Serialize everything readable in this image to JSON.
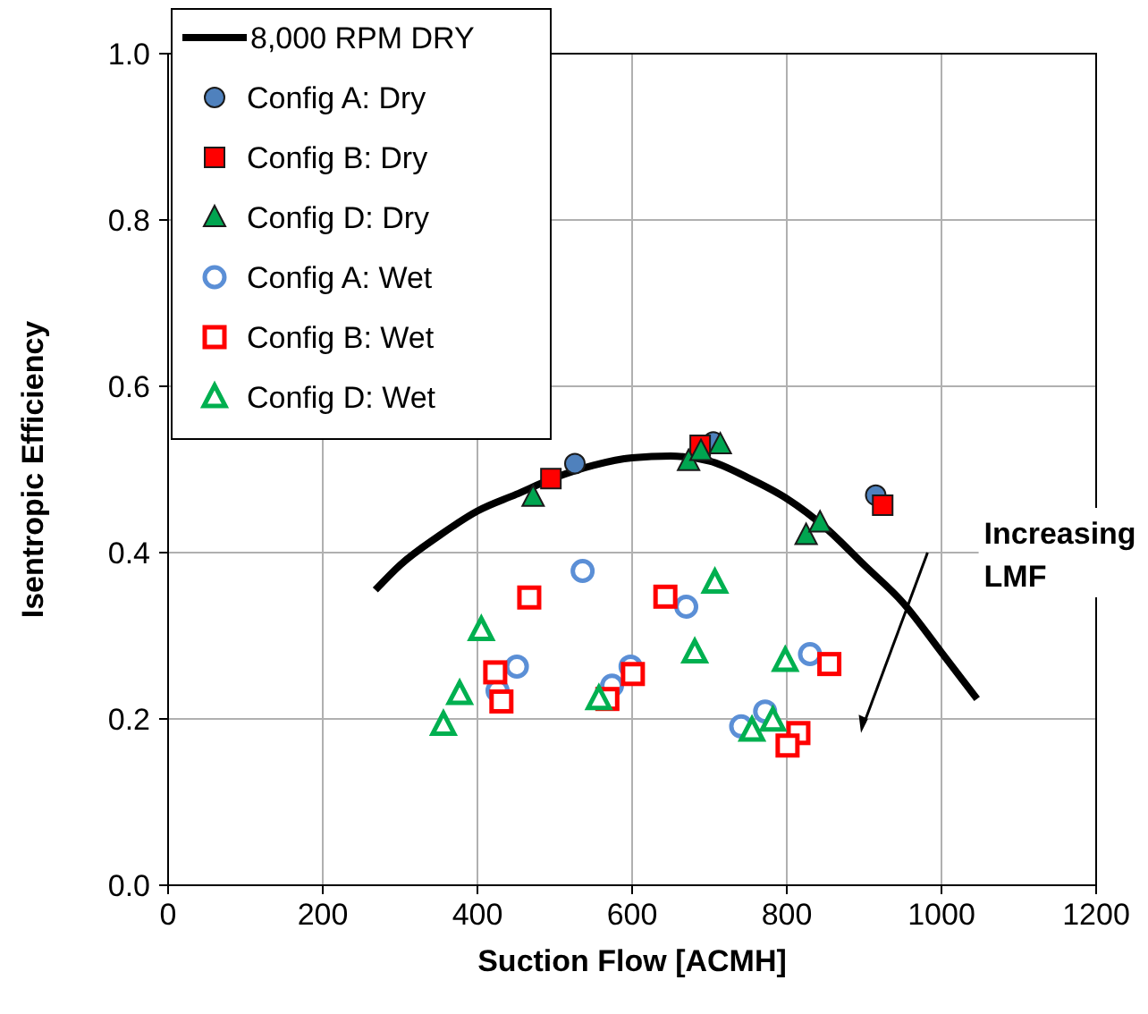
{
  "chart_data": {
    "type": "scatter",
    "xlabel": "Suction Flow [ACMH]",
    "ylabel": "Isentropic Efficiency",
    "xlim": [
      0,
      1200
    ],
    "xticks": [
      0,
      200,
      400,
      600,
      800,
      1000,
      1200
    ],
    "ylim": [
      0,
      1
    ],
    "yticks": [
      {
        "value": 0,
        "label": "0.0"
      },
      {
        "value": 0.2,
        "label": "0.2"
      },
      {
        "value": 0.4,
        "label": "0.4"
      },
      {
        "value": 0.6,
        "label": "0.6"
      },
      {
        "value": 0.8,
        "label": "0.8"
      },
      {
        "value": 1,
        "label": "1.0"
      }
    ],
    "grid": true,
    "legend": "top left",
    "annotations": [
      "Increasing LMF"
    ],
    "series": [
      {
        "name": "8,000 RPM DRY",
        "type": "line",
        "color": "#000000",
        "marker": "none",
        "x": [
          268,
          300,
          350,
          400,
          450,
          500,
          550,
          600,
          650,
          700,
          750,
          800,
          850,
          900,
          950,
          1000,
          1046
        ],
        "values": [
          0.355,
          0.385,
          0.42,
          0.45,
          0.47,
          0.49,
          0.505,
          0.514,
          0.516,
          0.51,
          0.49,
          0.465,
          0.43,
          0.385,
          0.34,
          0.28,
          0.224
        ]
      },
      {
        "name": "Config A: Dry",
        "color": "#4f81bd",
        "marker": "circle",
        "x": [
          526,
          705,
          915
        ],
        "values": [
          0.507,
          0.533,
          0.469
        ]
      },
      {
        "name": "Config B: Dry",
        "color": "#ff0000",
        "marker": "square",
        "x": [
          495,
          688,
          924
        ],
        "values": [
          0.489,
          0.529,
          0.457
        ]
      },
      {
        "name": "Config D: Dry",
        "color": "#00a550",
        "marker": "triangle",
        "x": [
          472,
          673,
          689,
          714,
          825,
          843
        ],
        "values": [
          0.467,
          0.51,
          0.522,
          0.53,
          0.421,
          0.436
        ]
      },
      {
        "name": "Config A: Wet",
        "color": "#5b8fd6",
        "marker": "circle",
        "x": [
          536,
          670,
          451,
          426,
          574,
          598,
          830,
          741,
          772
        ],
        "values": [
          0.378,
          0.335,
          0.263,
          0.234,
          0.24,
          0.263,
          0.278,
          0.191,
          0.209
        ]
      },
      {
        "name": "Config B: Wet",
        "color": "#ff0000",
        "marker": "square",
        "x": [
          467,
          643,
          423,
          431,
          568,
          601,
          855,
          815,
          801
        ],
        "values": [
          0.346,
          0.347,
          0.256,
          0.221,
          0.224,
          0.254,
          0.266,
          0.183,
          0.168
        ]
      },
      {
        "name": "Config D: Wet",
        "color": "#00b050",
        "marker": "triangle",
        "x": [
          707,
          405,
          681,
          798,
          377,
          356,
          557,
          755,
          782
        ],
        "values": [
          0.364,
          0.307,
          0.28,
          0.27,
          0.23,
          0.193,
          0.224,
          0.186,
          0.198
        ]
      }
    ]
  }
}
